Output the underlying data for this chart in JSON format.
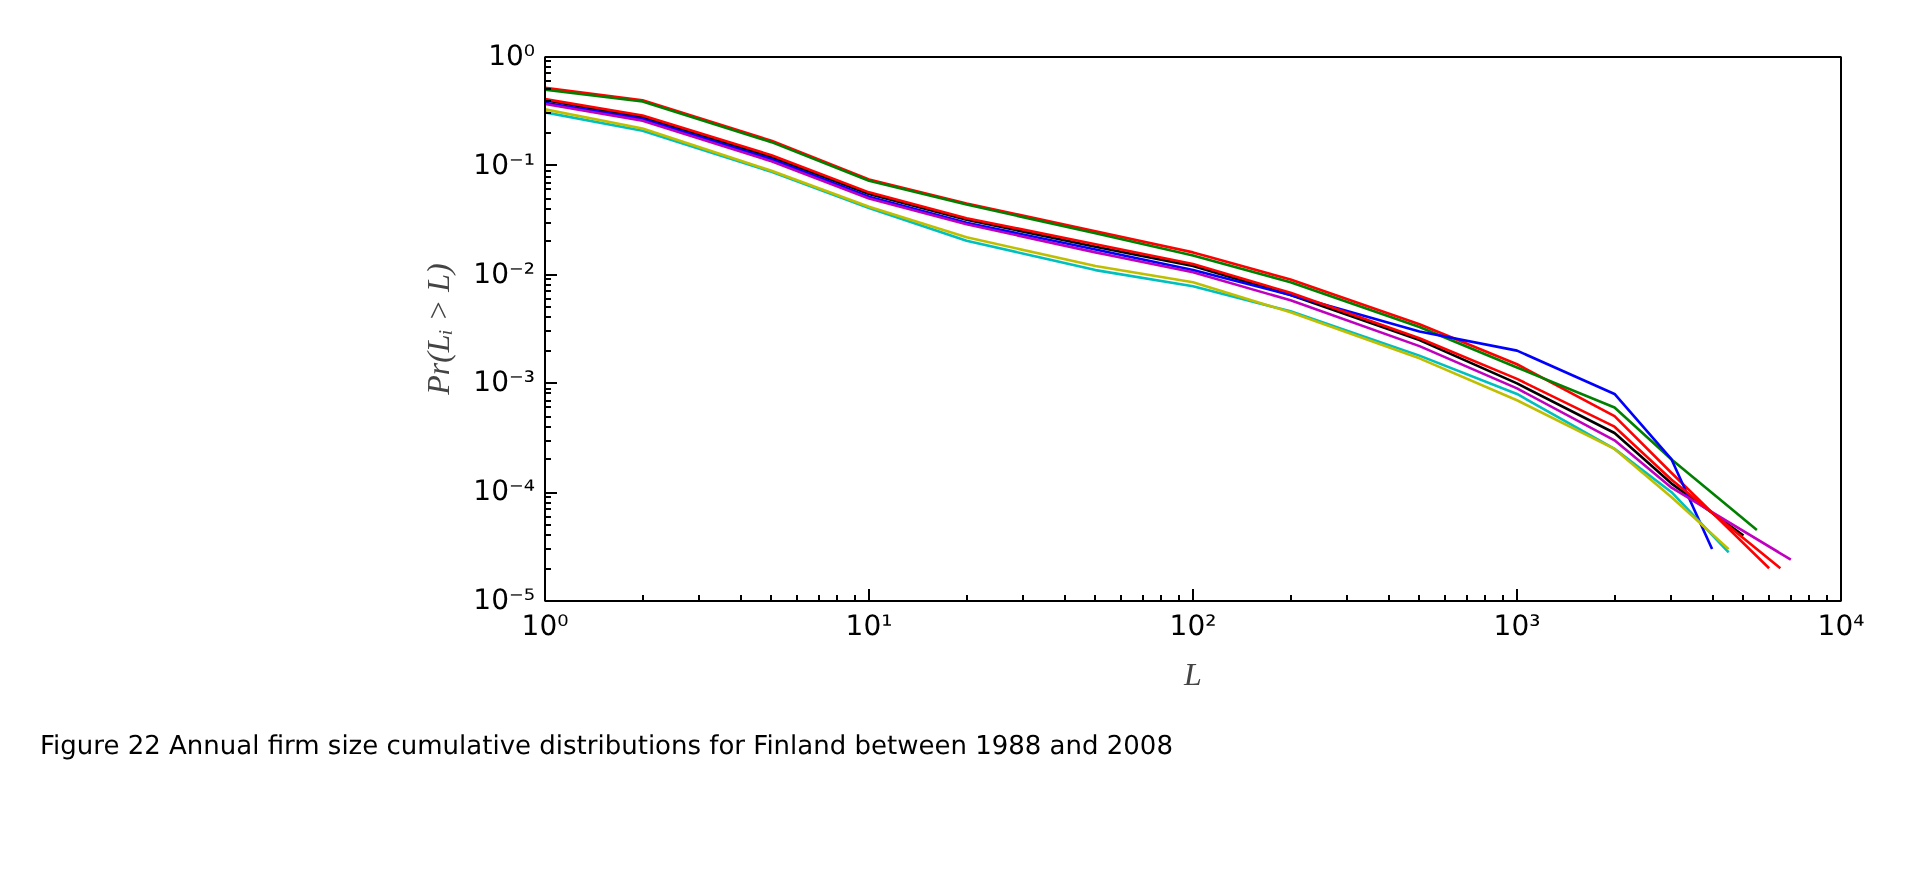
{
  "chart_data": {
    "type": "line",
    "xlabel": "L",
    "ylabel": "Pr(Lᵢ > L)",
    "log": "xy",
    "grid": false,
    "marker": "none",
    "line_style": "solid",
    "xlim": [
      1,
      10000
    ],
    "ylim": [
      1e-05,
      1
    ],
    "xticks": [
      {
        "value": 1,
        "label": "10⁰"
      },
      {
        "value": 10,
        "label": "10¹"
      },
      {
        "value": 100,
        "label": "10²"
      },
      {
        "value": 1000,
        "label": "10³"
      },
      {
        "value": 10000,
        "label": "10⁴"
      }
    ],
    "yticks": [
      {
        "value": 1e-05,
        "label": "10⁻⁵"
      },
      {
        "value": 0.0001,
        "label": "10⁻⁴"
      },
      {
        "value": 0.001,
        "label": "10⁻³"
      },
      {
        "value": 0.01,
        "label": "10⁻²"
      },
      {
        "value": 0.1,
        "label": "10⁻¹"
      },
      {
        "value": 1,
        "label": "10⁰"
      }
    ],
    "annotations": [
      "Figure 22  Annual firm size cumulative distributions for Finland between 1988 and 2008"
    ],
    "series": [
      {
        "color": "#ff0000",
        "x": [
          1,
          2,
          5,
          10,
          20,
          50,
          100,
          200,
          500,
          1000,
          2000,
          3000,
          6000
        ],
        "values": [
          0.52,
          0.4,
          0.17,
          0.075,
          0.045,
          0.025,
          0.016,
          0.009,
          0.0035,
          0.0015,
          0.0005,
          0.00015,
          2e-05
        ]
      },
      {
        "color": "#008000",
        "x": [
          1,
          2,
          5,
          10,
          20,
          50,
          100,
          200,
          500,
          1000,
          2000,
          3000,
          5500
        ],
        "values": [
          0.5,
          0.39,
          0.165,
          0.073,
          0.044,
          0.024,
          0.015,
          0.0085,
          0.0033,
          0.0014,
          0.0006,
          0.0002,
          4.5e-05
        ]
      },
      {
        "color": "#000000",
        "x": [
          1,
          2,
          5,
          10,
          20,
          50,
          100,
          200,
          500,
          1000,
          2000,
          3000,
          5000
        ],
        "values": [
          0.4,
          0.28,
          0.12,
          0.055,
          0.032,
          0.018,
          0.012,
          0.0065,
          0.0025,
          0.001,
          0.00035,
          0.00012,
          4e-05
        ]
      },
      {
        "color": "#0000ff",
        "x": [
          1,
          2,
          5,
          10,
          20,
          50,
          100,
          200,
          500,
          1000,
          2000,
          3000,
          4000
        ],
        "values": [
          0.38,
          0.27,
          0.115,
          0.052,
          0.03,
          0.017,
          0.011,
          0.0065,
          0.003,
          0.002,
          0.0008,
          0.0002,
          3e-05
        ]
      },
      {
        "color": "#bf00bf",
        "x": [
          1,
          2,
          5,
          10,
          20,
          50,
          100,
          200,
          500,
          1000,
          2000,
          3000,
          7000
        ],
        "values": [
          0.37,
          0.26,
          0.11,
          0.05,
          0.029,
          0.016,
          0.0105,
          0.0058,
          0.0022,
          0.0009,
          0.0003,
          0.00011,
          2.4e-05
        ]
      },
      {
        "color": "#ff0000",
        "x": [
          1,
          2,
          5,
          10,
          20,
          50,
          100,
          200,
          500,
          1000,
          2000,
          3000,
          6500
        ],
        "values": [
          0.41,
          0.29,
          0.125,
          0.057,
          0.033,
          0.019,
          0.0125,
          0.0068,
          0.0026,
          0.0011,
          0.0004,
          0.00013,
          2e-05
        ]
      },
      {
        "color": "#00bfbf",
        "x": [
          1,
          2,
          5,
          10,
          20,
          50,
          100,
          200,
          500,
          1000,
          2000,
          3000,
          4500
        ],
        "values": [
          0.31,
          0.21,
          0.088,
          0.041,
          0.0205,
          0.011,
          0.0078,
          0.0046,
          0.0018,
          0.0008,
          0.00025,
          0.0001,
          2.8e-05
        ]
      },
      {
        "color": "#bfbf00",
        "x": [
          1,
          2,
          5,
          10,
          20,
          50,
          100,
          200,
          500,
          1000,
          2000,
          3000,
          4500
        ],
        "values": [
          0.33,
          0.22,
          0.09,
          0.042,
          0.022,
          0.012,
          0.0085,
          0.0045,
          0.0017,
          0.0007,
          0.00025,
          9e-05,
          3e-05
        ]
      }
    ]
  }
}
